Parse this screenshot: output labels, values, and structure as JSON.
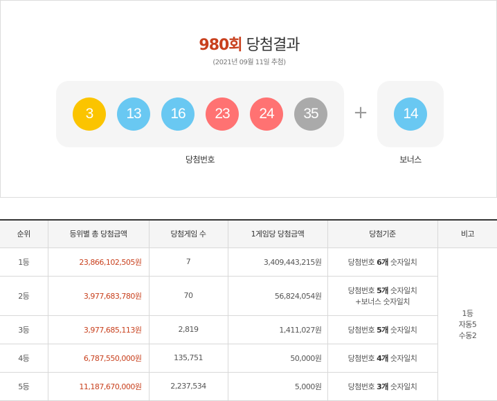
{
  "header": {
    "round": "980회",
    "title_suffix": " 당첨결과",
    "draw_date": "(2021년 09월 11일 추첨)"
  },
  "winning_numbers": {
    "label": "당첨번호",
    "balls": [
      {
        "value": "3",
        "color": "#fbc400"
      },
      {
        "value": "13",
        "color": "#69c8f2"
      },
      {
        "value": "16",
        "color": "#69c8f2"
      },
      {
        "value": "23",
        "color": "#ff7272"
      },
      {
        "value": "24",
        "color": "#ff7272"
      },
      {
        "value": "35",
        "color": "#aaaaaa"
      }
    ]
  },
  "plus_symbol": "+",
  "bonus": {
    "label": "보너스",
    "value": "14",
    "color": "#69c8f2"
  },
  "prize_table": {
    "headers": [
      "순위",
      "등위별 총 당첨금액",
      "당첨게임 수",
      "1게임당 당첨금액",
      "당첨기준",
      "비고"
    ],
    "rows": [
      {
        "rank": "1등",
        "total": "23,866,102,505원",
        "games": "7",
        "per_game": "3,409,443,215원",
        "criteria_prefix": "당첨번호 ",
        "criteria_count": "6개",
        "criteria_suffix": " 숫자일치",
        "criteria_extra": ""
      },
      {
        "rank": "2등",
        "total": "3,977,683,780원",
        "games": "70",
        "per_game": "56,824,054원",
        "criteria_prefix": "당첨번호 ",
        "criteria_count": "5개",
        "criteria_suffix": " 숫자일치",
        "criteria_extra": "+보너스 숫자일치"
      },
      {
        "rank": "3등",
        "total": "3,977,685,113원",
        "games": "2,819",
        "per_game": "1,411,027원",
        "criteria_prefix": "당첨번호 ",
        "criteria_count": "5개",
        "criteria_suffix": " 숫자일치",
        "criteria_extra": ""
      },
      {
        "rank": "4등",
        "total": "6,787,550,000원",
        "games": "135,751",
        "per_game": "50,000원",
        "criteria_prefix": "당첨번호 ",
        "criteria_count": "4개",
        "criteria_suffix": " 숫자일치",
        "criteria_extra": ""
      },
      {
        "rank": "5등",
        "total": "11,187,670,000원",
        "games": "2,237,534",
        "per_game": "5,000원",
        "criteria_prefix": "당첨번호 ",
        "criteria_count": "3개",
        "criteria_suffix": " 숫자일치",
        "criteria_extra": ""
      }
    ],
    "remarks": [
      "1등",
      "자동5",
      "수동2"
    ]
  }
}
